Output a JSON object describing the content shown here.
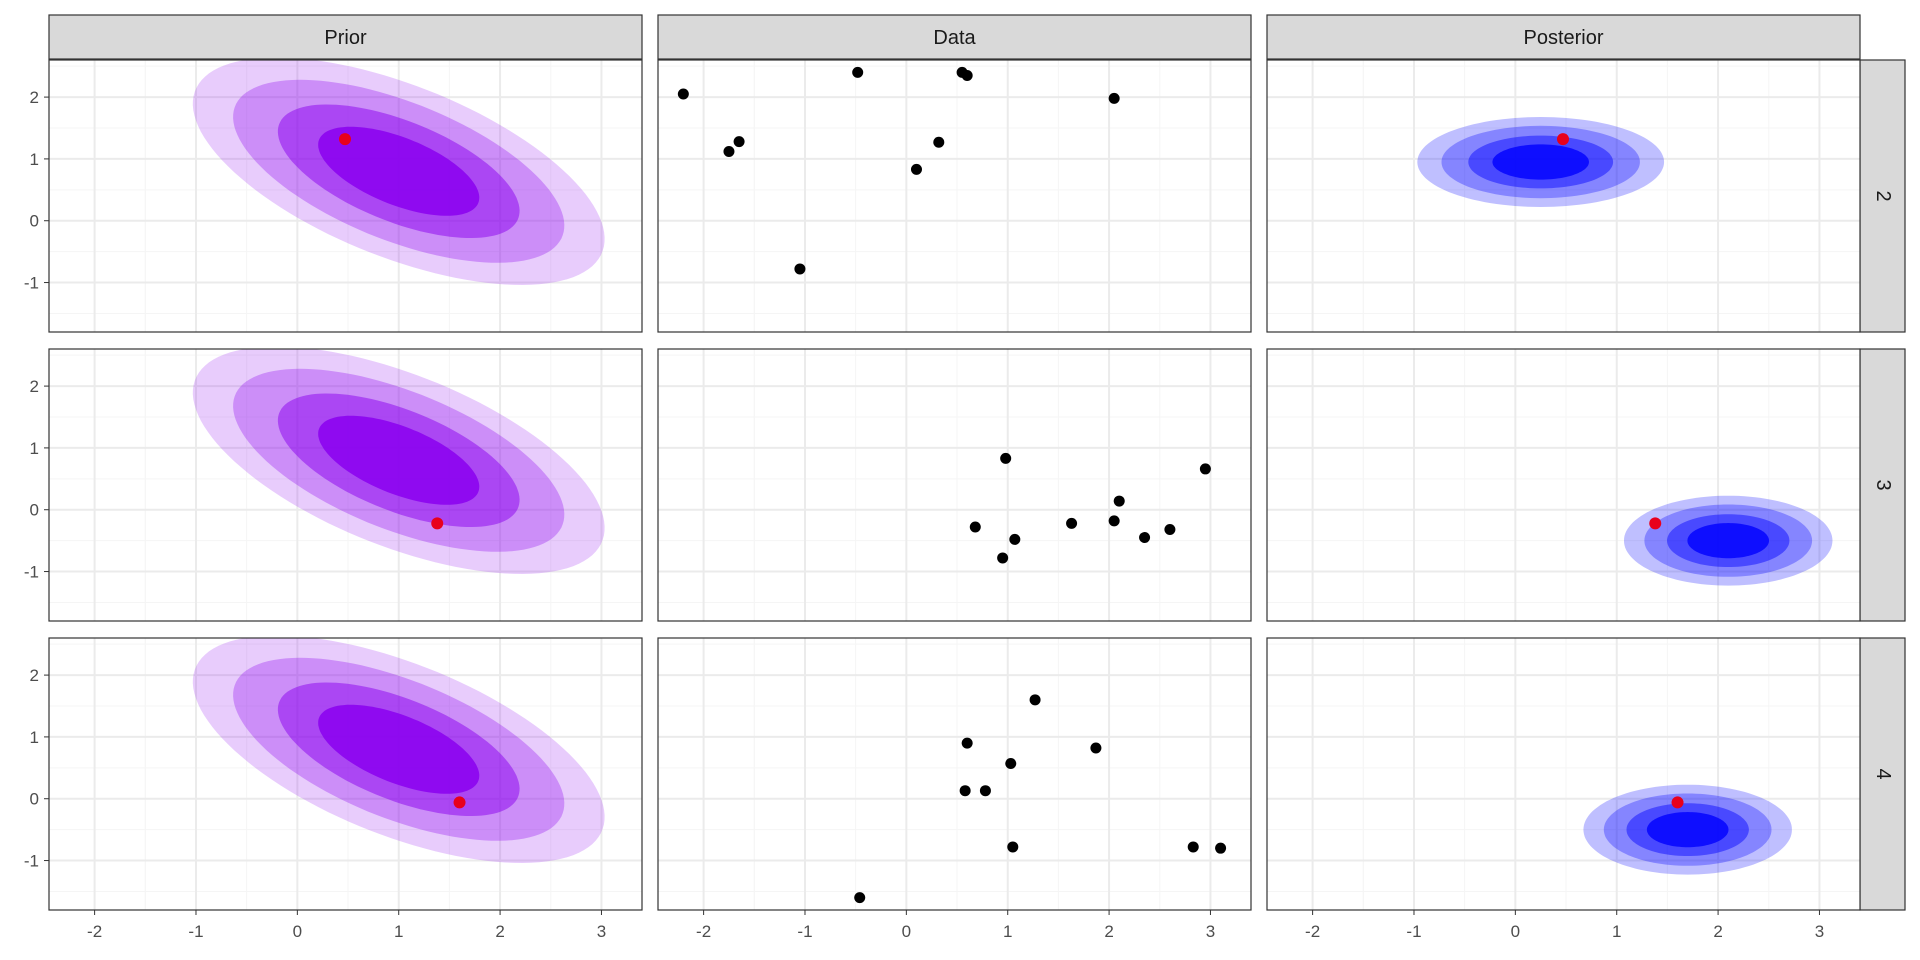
{
  "chart_data": {
    "type": "faceted-contour-scatter",
    "columns": [
      "Prior",
      "Data",
      "Posterior"
    ],
    "rows": [
      "2",
      "3",
      "4"
    ],
    "xlim": [
      -2.45,
      3.4
    ],
    "ylim": [
      -1.8,
      2.6
    ],
    "x_ticks": [
      -2,
      -1,
      0,
      1,
      2,
      3
    ],
    "x_tick_labels": [
      "-2",
      "-1",
      "0",
      "1",
      "2",
      "3"
    ],
    "y_ticks": [
      -1,
      0,
      1,
      2
    ],
    "y_tick_labels": [
      "-1",
      "0",
      "1",
      "2"
    ],
    "grid": true,
    "colors": {
      "prior_fill": "#8a00ee",
      "posterior_fill": "#0000ff",
      "data_point": "#000000",
      "true_point": "#e8001c",
      "strip_background": "#d9d9d9",
      "panel_border": "#333333",
      "grid_major": "#ebebeb",
      "grid_minor": "#f5f5f5"
    },
    "prior": {
      "center": [
        1.0,
        0.8
      ],
      "cov": [
        [
          0.78,
          -0.42
        ],
        [
          -0.42,
          0.64
        ]
      ],
      "levels": [
        0.2,
        0.3,
        0.5,
        0.85
      ]
    },
    "posterior": [
      {
        "row": "2",
        "center": [
          0.25,
          0.95
        ],
        "cov": [
          [
            0.28,
            0
          ],
          [
            0,
            0.1
          ]
        ],
        "levels": [
          0.25,
          0.3,
          0.45,
          0.8
        ],
        "true_point": [
          0.47,
          1.32
        ],
        "data": [
          [
            -2.2,
            2.05
          ],
          [
            -0.48,
            2.4
          ],
          [
            0.55,
            2.4
          ],
          [
            0.6,
            2.35
          ],
          [
            -1.75,
            1.12
          ],
          [
            -1.65,
            1.28
          ],
          [
            0.32,
            1.27
          ],
          [
            0.1,
            0.83
          ],
          [
            2.05,
            1.98
          ],
          [
            -1.05,
            -0.78
          ]
        ]
      },
      {
        "row": "3",
        "center": [
          2.1,
          -0.5
        ],
        "cov": [
          [
            0.2,
            0
          ],
          [
            0,
            0.1
          ]
        ],
        "levels": [
          0.25,
          0.3,
          0.45,
          0.8
        ],
        "true_point": [
          1.38,
          -0.22
        ],
        "data": [
          [
            0.98,
            0.83
          ],
          [
            2.95,
            0.66
          ],
          [
            2.1,
            0.14
          ],
          [
            0.68,
            -0.28
          ],
          [
            1.07,
            -0.48
          ],
          [
            1.63,
            -0.22
          ],
          [
            2.05,
            -0.18
          ],
          [
            2.35,
            -0.45
          ],
          [
            2.6,
            -0.32
          ],
          [
            0.95,
            -0.78
          ]
        ]
      },
      {
        "row": "4",
        "center": [
          1.7,
          -0.5
        ],
        "cov": [
          [
            0.2,
            0
          ],
          [
            0,
            0.1
          ]
        ],
        "levels": [
          0.25,
          0.3,
          0.45,
          0.8
        ],
        "true_point": [
          1.6,
          -0.06
        ],
        "data": [
          [
            1.27,
            1.6
          ],
          [
            0.6,
            0.9
          ],
          [
            1.87,
            0.82
          ],
          [
            1.03,
            0.57
          ],
          [
            0.58,
            0.13
          ],
          [
            0.78,
            0.13
          ],
          [
            1.05,
            -0.78
          ],
          [
            2.83,
            -0.78
          ],
          [
            3.1,
            -0.8
          ],
          [
            -0.46,
            -1.6
          ]
        ]
      }
    ]
  }
}
